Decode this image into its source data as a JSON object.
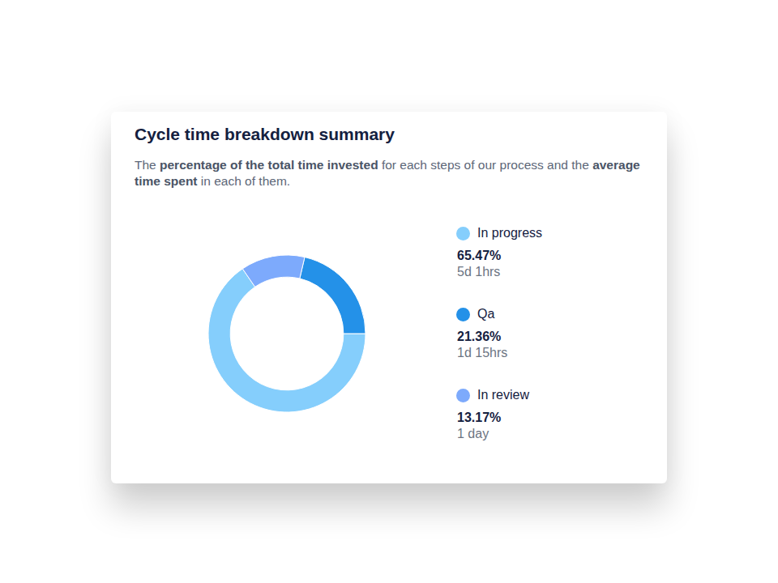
{
  "chart_data": {
    "type": "pie",
    "title": "Cycle time breakdown summary",
    "subtitle_parts": [
      "The ",
      "percentage of the total time invested",
      " for each steps of our process and the ",
      "average time spent",
      " in each of them."
    ],
    "categories": [
      "In progress",
      "Qa",
      "In review"
    ],
    "values": [
      65.47,
      21.36,
      13.17
    ],
    "value_labels": [
      "65.47%",
      "21.36%",
      "13.17%"
    ],
    "durations": [
      "5d 1hrs",
      "1d 15hrs",
      "1 day"
    ],
    "colors": [
      "#85cefc",
      "#2491e8",
      "#7daafc"
    ],
    "legend": "right"
  }
}
